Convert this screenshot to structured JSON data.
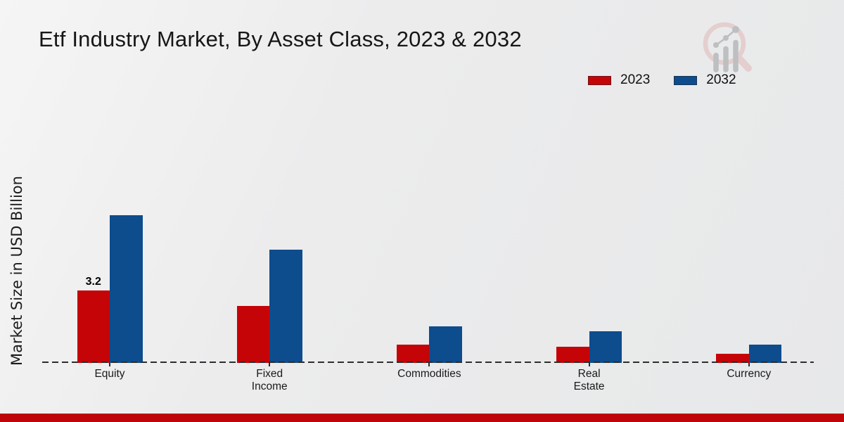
{
  "title": "Etf Industry Market, By Asset Class, 2023 & 2032",
  "ylabel": "Market Size in USD Billion",
  "footer_bar_color": "#bf040a",
  "icons": {
    "brand_logo": "magnifier-growth-chart-logo"
  },
  "colors": {
    "series_2023": "#c50408",
    "series_2032": "#0d4c8d",
    "baseline": "#2d2d2d",
    "background": "#ebecec",
    "footer_strip": "#bf040a"
  },
  "chart_data": {
    "type": "bar",
    "title": "Etf Industry Market, By Asset Class, 2023 & 2032",
    "xlabel": "",
    "ylabel": "Market Size in USD Billion",
    "categories": [
      "Equity",
      "Fixed\nIncome",
      "Commodities",
      "Real\nEstate",
      "Currency"
    ],
    "series": [
      {
        "name": "2023",
        "color": "#c50408",
        "values": [
          3.2,
          2.5,
          0.8,
          0.7,
          0.4
        ]
      },
      {
        "name": "2032",
        "color": "#0d4c8d",
        "values": [
          6.5,
          5.0,
          1.6,
          1.4,
          0.8
        ]
      }
    ],
    "annotations": [
      {
        "series": "2023",
        "category": "Equity",
        "text": "3.2"
      }
    ],
    "ylim": [
      0,
      7
    ],
    "grid": false,
    "y_axis_ticks_visible": false,
    "baseline_style": "dashed",
    "legend_position": "upper right"
  }
}
